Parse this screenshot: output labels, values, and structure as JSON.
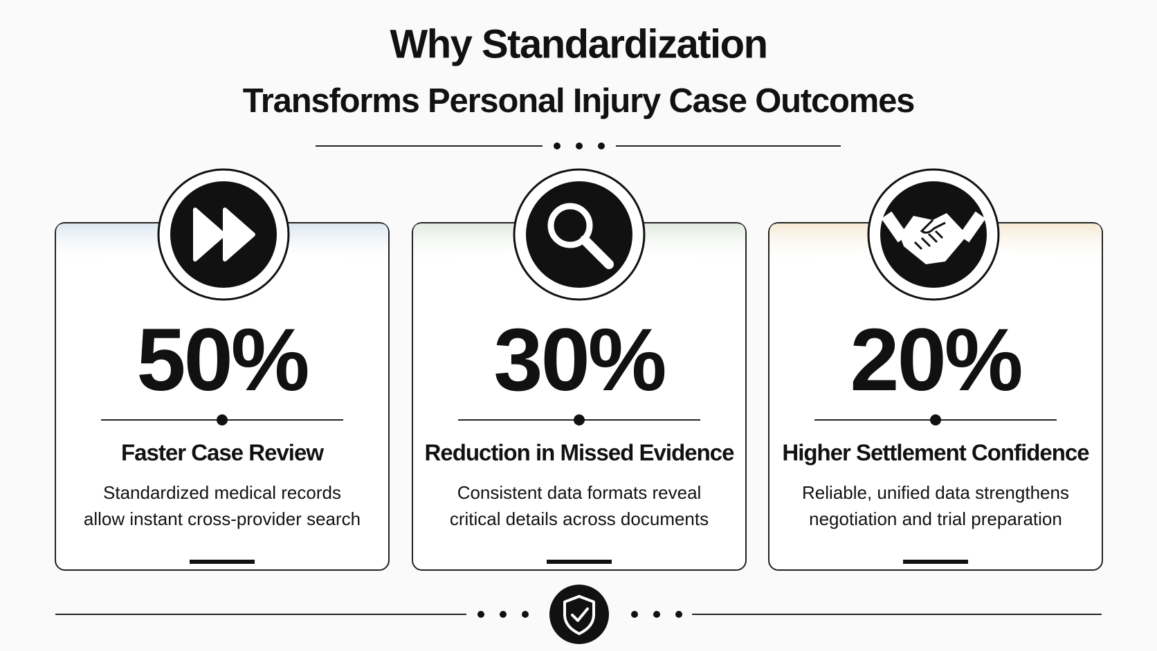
{
  "header": {
    "title_line1": "Why Standardization",
    "title_line2": "Transforms Personal Injury Case Outcomes"
  },
  "cards": [
    {
      "stat": "50%",
      "heading": "Faster Case Review",
      "description": [
        "Standardized medical records",
        "allow instant cross-provider search"
      ]
    },
    {
      "stat": "30%",
      "heading": "Reduction in Missed Evidence",
      "description": [
        "Consistent data formats reveal",
        "critical details across documents"
      ]
    },
    {
      "stat": "20%",
      "heading": "Higher Settlement Confidence",
      "description": [
        "Reliable, unified data strengthens",
        "negotiation and trial preparation"
      ]
    }
  ]
}
